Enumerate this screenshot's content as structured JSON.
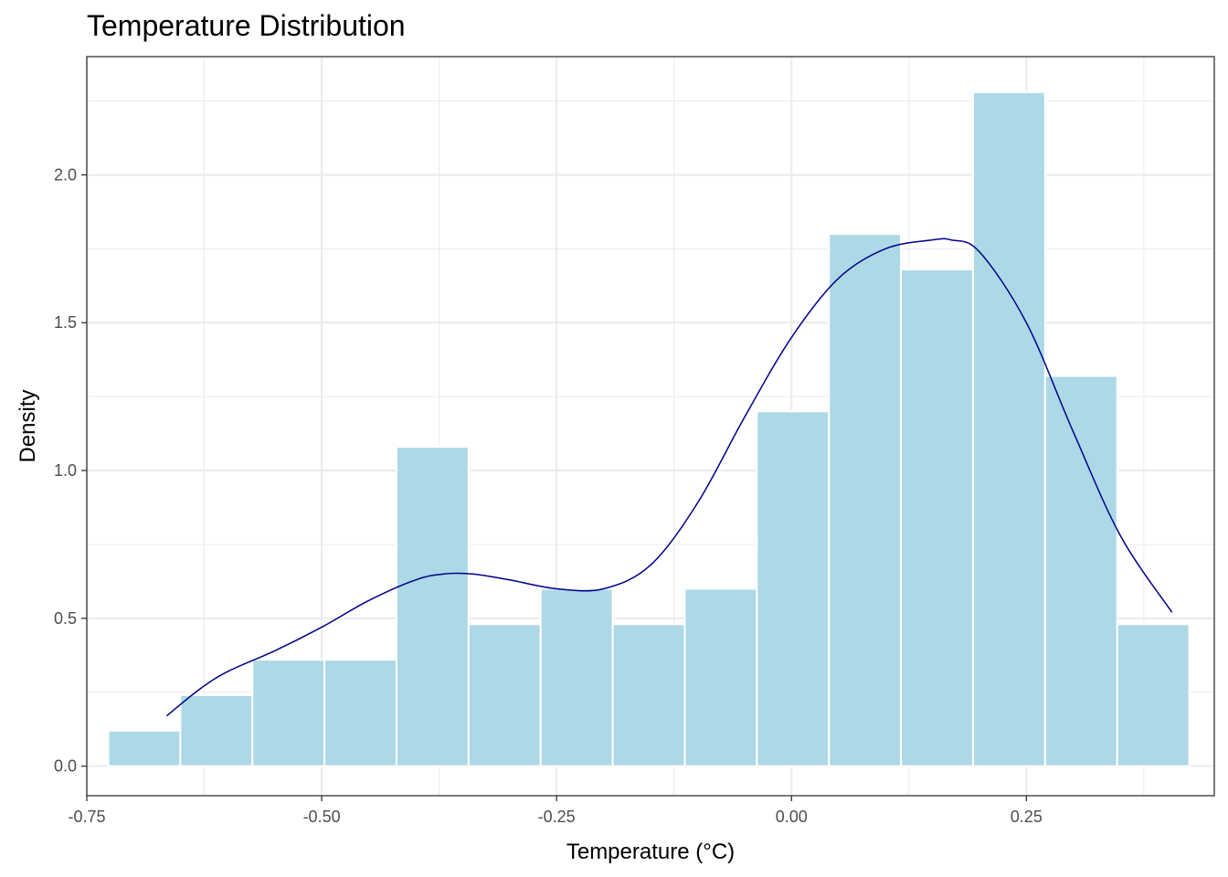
{
  "chart_data": {
    "type": "bar",
    "title": "Temperature Distribution",
    "xlabel": "Temperature (°C)",
    "ylabel": "Density",
    "xlim": [
      -0.75,
      0.45
    ],
    "ylim": [
      -0.1,
      2.4
    ],
    "x_ticks": [
      -0.75,
      -0.5,
      -0.25,
      0.0,
      0.25
    ],
    "x_tick_labels": [
      "-0.75",
      "-0.50",
      "-0.25",
      "0.00",
      "0.25"
    ],
    "y_ticks": [
      0.0,
      0.5,
      1.0,
      1.5,
      2.0
    ],
    "y_tick_labels": [
      "0.0",
      "0.5",
      "1.0",
      "1.5",
      "2.0"
    ],
    "grid": true,
    "bin_width": 0.0767,
    "bins": [
      {
        "x": -0.6888,
        "density": 0.12
      },
      {
        "x": -0.6121,
        "density": 0.24
      },
      {
        "x": -0.5354,
        "density": 0.36
      },
      {
        "x": -0.4587,
        "density": 0.36
      },
      {
        "x": -0.382,
        "density": 1.08
      },
      {
        "x": -0.3053,
        "density": 0.48
      },
      {
        "x": -0.2286,
        "density": 0.6
      },
      {
        "x": -0.1519,
        "density": 0.48
      },
      {
        "x": -0.0752,
        "density": 0.6
      },
      {
        "x": 0.0015,
        "density": 1.2
      },
      {
        "x": 0.0782,
        "density": 1.8
      },
      {
        "x": 0.1549,
        "density": 1.68
      },
      {
        "x": 0.2316,
        "density": 2.28
      },
      {
        "x": 0.3083,
        "density": 1.32
      },
      {
        "x": 0.385,
        "density": 0.48
      }
    ],
    "density_curve": {
      "x": [
        -0.665,
        -0.63,
        -0.6,
        -0.55,
        -0.5,
        -0.45,
        -0.4,
        -0.37,
        -0.34,
        -0.3,
        -0.25,
        -0.2,
        -0.15,
        -0.1,
        -0.05,
        0.0,
        0.05,
        0.1,
        0.15,
        0.17,
        0.2,
        0.25,
        0.3,
        0.35,
        0.405
      ],
      "y": [
        0.17,
        0.26,
        0.32,
        0.39,
        0.47,
        0.56,
        0.63,
        0.65,
        0.65,
        0.63,
        0.6,
        0.6,
        0.68,
        0.89,
        1.18,
        1.45,
        1.65,
        1.75,
        1.78,
        1.78,
        1.74,
        1.5,
        1.13,
        0.78,
        0.52
      ]
    },
    "colors": {
      "bar_fill": "#add8e6",
      "bar_outline": "#ffffff",
      "curve": "#00008b",
      "grid": "#ebebeb",
      "panel_border": "#333333"
    }
  }
}
